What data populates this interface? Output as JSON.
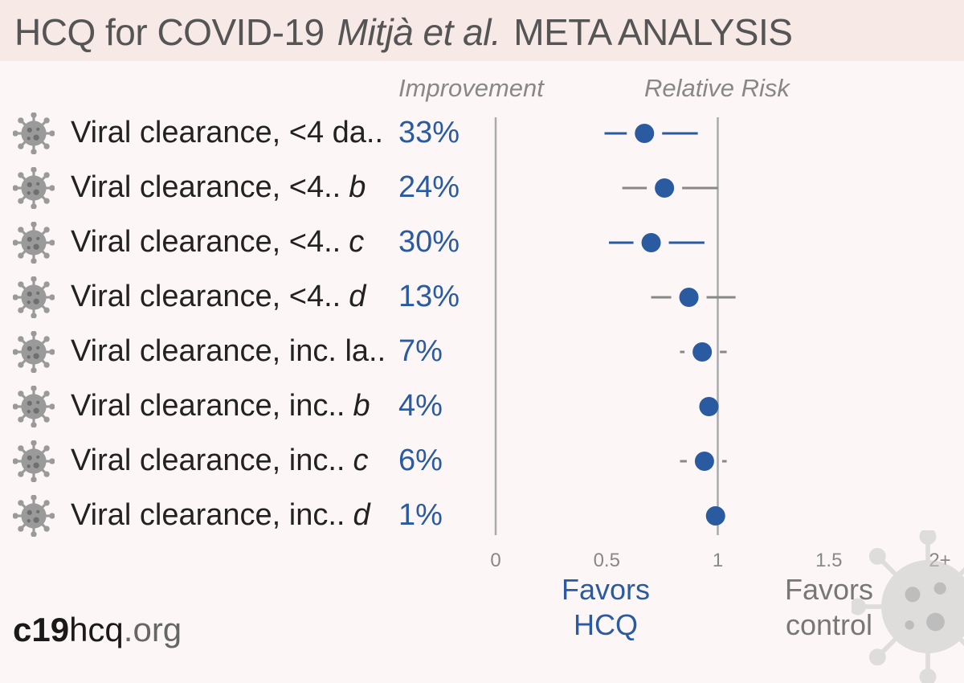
{
  "title": {
    "main": "HCQ for COVID-19",
    "authors": "Mitjà et al.",
    "suffix": "META ANALYSIS"
  },
  "columns": {
    "improvement": "Improvement",
    "relative_risk": "Relative Risk"
  },
  "rows": [
    {
      "label": "Viral clearance, <4 da..",
      "suffix": "",
      "improvement": "33%"
    },
    {
      "label": "Viral clearance, <4..",
      "suffix": "b",
      "improvement": "24%"
    },
    {
      "label": "Viral clearance, <4..",
      "suffix": "c",
      "improvement": "30%"
    },
    {
      "label": "Viral clearance, <4..",
      "suffix": "d",
      "improvement": "13%"
    },
    {
      "label": "Viral clearance, inc. la..",
      "suffix": "",
      "improvement": "7%"
    },
    {
      "label": "Viral clearance, inc..",
      "suffix": "b",
      "improvement": "4%"
    },
    {
      "label": "Viral clearance, inc..",
      "suffix": "c",
      "improvement": "6%"
    },
    {
      "label": "Viral clearance, inc..",
      "suffix": "d",
      "improvement": "1%"
    }
  ],
  "chart_data": {
    "type": "scatter",
    "subtype": "forest-plot",
    "x_axis_label": "Relative Risk",
    "xlim": [
      0,
      2
    ],
    "x_ticks": [
      "0",
      "0.5",
      "1",
      "1.5",
      "2+"
    ],
    "x_tick_values": [
      0,
      0.5,
      1,
      1.5,
      2
    ],
    "reference_lines": [
      0,
      1
    ],
    "points": [
      {
        "rr": 0.67,
        "ci": [
          0.49,
          0.91
        ],
        "significant": true
      },
      {
        "rr": 0.76,
        "ci": [
          0.57,
          1.0
        ],
        "significant": false
      },
      {
        "rr": 0.7,
        "ci": [
          0.51,
          0.94
        ],
        "significant": true
      },
      {
        "rr": 0.87,
        "ci": [
          0.7,
          1.08
        ],
        "significant": false
      },
      {
        "rr": 0.93,
        "ci": [
          0.83,
          1.04
        ],
        "significant": false
      },
      {
        "rr": 0.96,
        "ci": [
          0.89,
          1.03
        ],
        "significant": false
      },
      {
        "rr": 0.94,
        "ci": [
          0.83,
          1.04
        ],
        "significant": false
      },
      {
        "rr": 0.99,
        "ci": [
          0.93,
          1.06
        ],
        "significant": false
      }
    ],
    "colors": {
      "point": "#2a5aa0",
      "ci_significant": "#2a5aa0",
      "ci_nonsignificant": "#888888",
      "axis": "#aaaaaa"
    }
  },
  "favors": {
    "hcq": [
      "Favors",
      "HCQ"
    ],
    "control": [
      "Favors",
      "control"
    ]
  },
  "footer": {
    "site_bold": "c19",
    "site_mid": "hcq",
    "site_tld": ".org"
  },
  "icons": {
    "row_icon": "coronavirus-icon",
    "background": "coronavirus-watermark-icon"
  }
}
